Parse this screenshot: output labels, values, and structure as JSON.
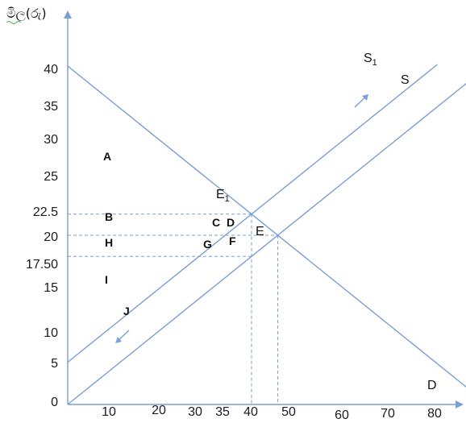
{
  "chart_data": {
    "type": "line",
    "ylabel": "මිල(රු)",
    "xlabel": "",
    "xlim": [
      0,
      80
    ],
    "ylim": [
      0,
      40
    ],
    "x_ticks": [
      "10",
      "20",
      "30",
      "35",
      "40",
      "50",
      "60",
      "70",
      "80"
    ],
    "y_ticks": [
      "0",
      "5",
      "10",
      "15",
      "17.50",
      "20",
      "22.5",
      "25",
      "30",
      "35",
      "40"
    ],
    "series": [
      {
        "name": "D",
        "x": [
          0,
          80
        ],
        "y": [
          40,
          0
        ]
      },
      {
        "name": "S",
        "x": [
          0,
          80
        ],
        "y": [
          0,
          40
        ]
      },
      {
        "name": "S1",
        "x": [
          0,
          80
        ],
        "y": [
          5,
          45
        ]
      }
    ],
    "points": [
      {
        "label": "E",
        "x": 40,
        "y": 20
      },
      {
        "label": "E1",
        "x": 35,
        "y": 22.5
      }
    ],
    "reference_lines": [
      {
        "y": 22.5,
        "x_to": 35
      },
      {
        "y": 20,
        "x_to": 40
      },
      {
        "y": 17.5,
        "x_to": 35
      },
      {
        "x": 35,
        "y_to": 22.5
      },
      {
        "x": 40,
        "y_to": 20
      }
    ],
    "region_labels": [
      "A",
      "B",
      "C",
      "D",
      "E",
      "F",
      "G",
      "H",
      "I",
      "J"
    ],
    "colors": {
      "lines": "#7a9fd4",
      "axis": "#7a9fd4",
      "text": "#111111"
    }
  },
  "labels": {
    "curve_S": "S",
    "curve_S1_main": "S",
    "curve_S1_sub": "1",
    "curve_D": "D",
    "point_E": "E",
    "point_E1_main": "E",
    "point_E1_sub": "1",
    "A": "A",
    "B": "B",
    "C": "C",
    "D": "D",
    "F": "F",
    "G": "G",
    "H": "H",
    "I": "I",
    "J": "J"
  }
}
